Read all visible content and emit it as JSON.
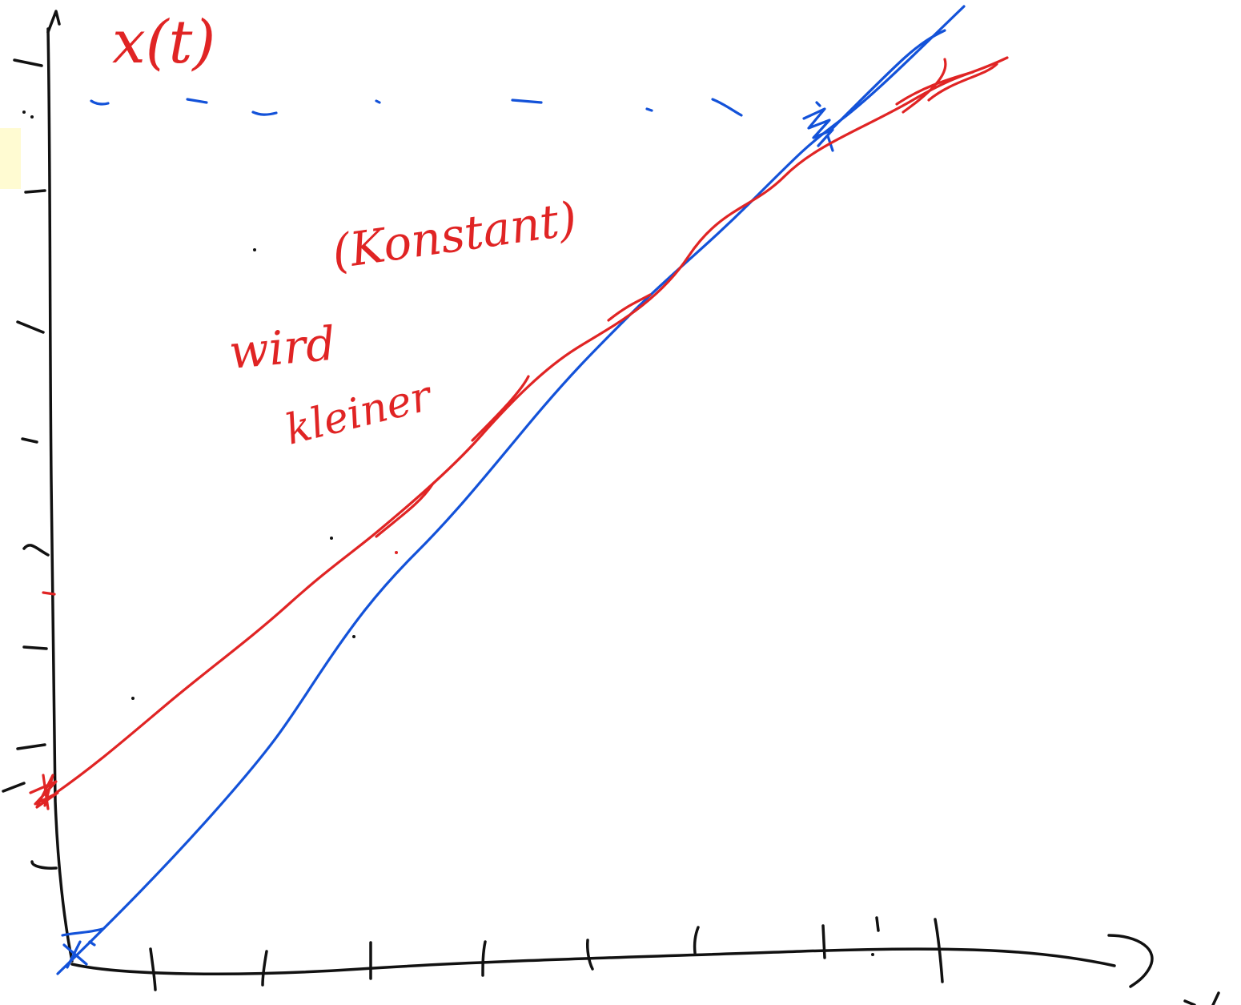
{
  "axis_label_y": "x(t)",
  "annotations": {
    "line1": "(Konstant)",
    "line2": "wird",
    "line3": "kleiner"
  },
  "colors": {
    "axes": "#111111",
    "blue_curve": "#1352d9",
    "red_curve": "#e02424",
    "highlight": "#fffbd2"
  }
}
